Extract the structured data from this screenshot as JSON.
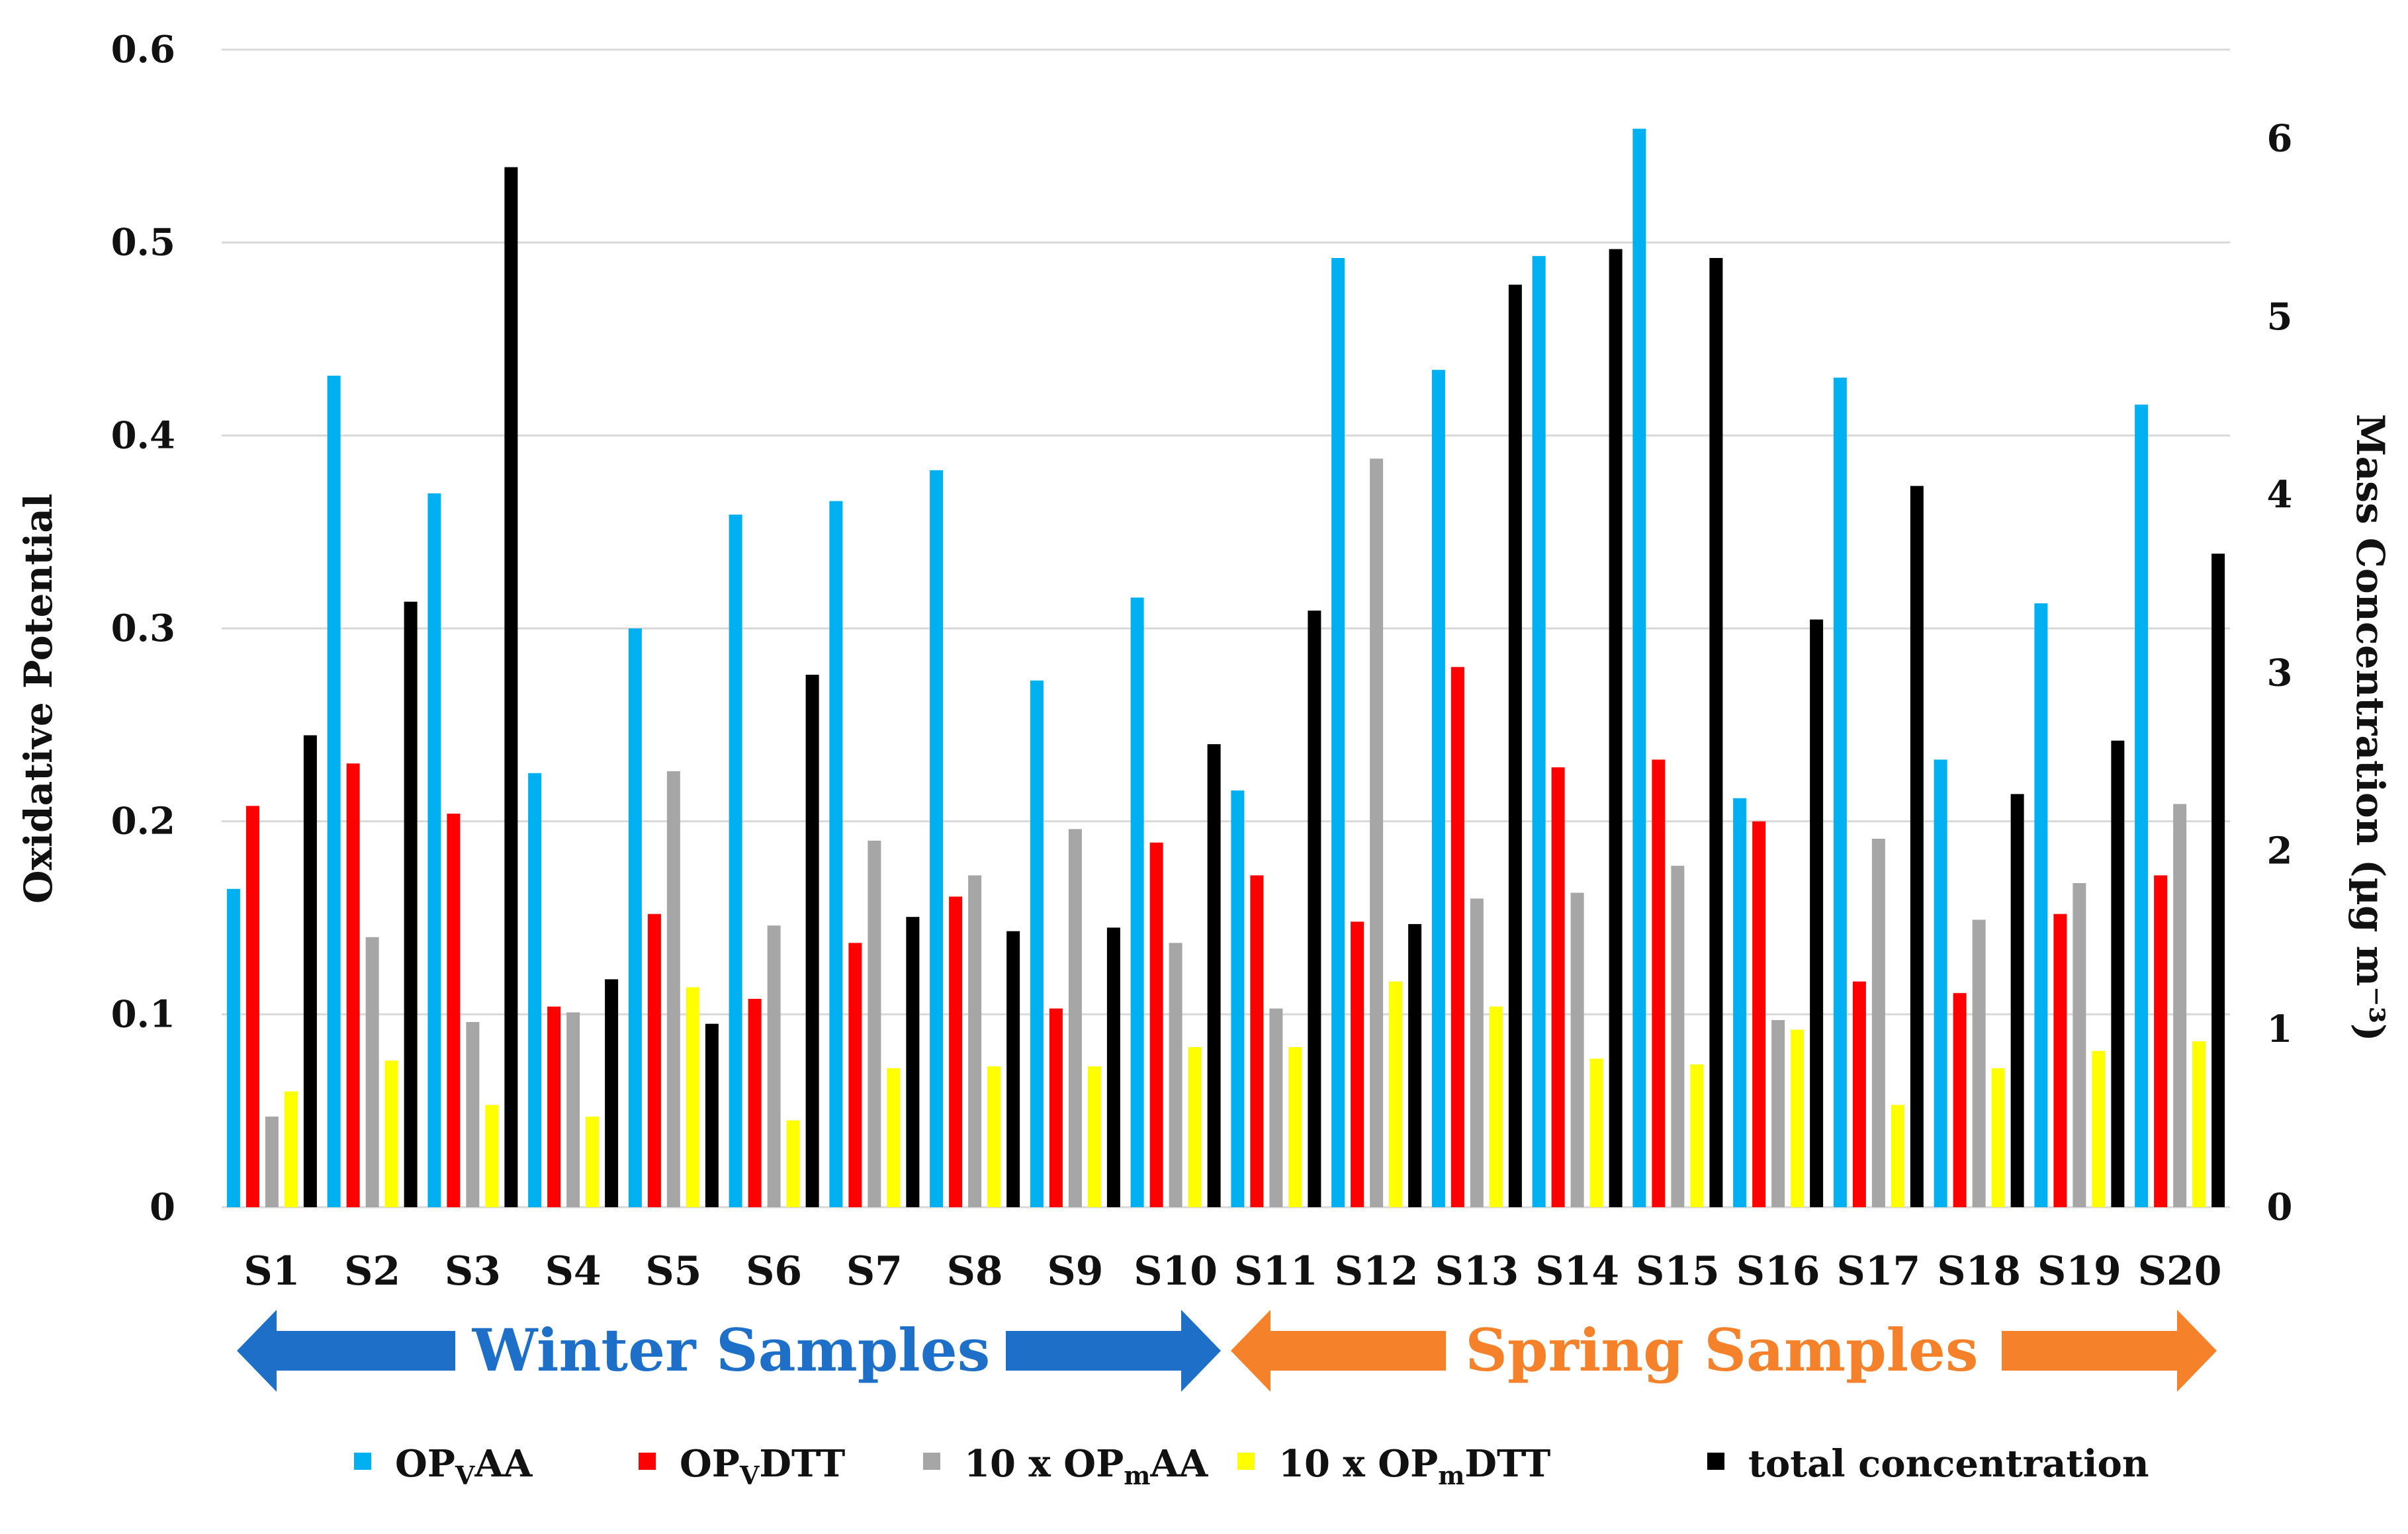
{
  "chart_data": {
    "type": "bar",
    "categories": [
      "S1",
      "S2",
      "S3",
      "S4",
      "S5",
      "S6",
      "S7",
      "S8",
      "S9",
      "S10",
      "S11",
      "S12",
      "S13",
      "S14",
      "S15",
      "S16",
      "S17",
      "S18",
      "S19",
      "S20"
    ],
    "y_left": {
      "label": "Oxidative Potential",
      "lim": [
        0,
        0.6
      ],
      "ticks": [
        "0",
        "0.1",
        "0.2",
        "0.3",
        "0.4",
        "0.5",
        "0.6"
      ]
    },
    "y_right": {
      "label": "Mass Concentration (µg m⁻³)",
      "lim": [
        0,
        6.5
      ],
      "ticks": [
        "0",
        "1",
        "2",
        "3",
        "4",
        "5",
        "6"
      ]
    },
    "series": [
      {
        "name": "OPvAA",
        "base": "OP",
        "sub": "V",
        "tail": "AA",
        "prefix": "",
        "color": "#00b0f0",
        "axis": "left",
        "values": [
          0.165,
          0.431,
          0.37,
          0.225,
          0.3,
          0.359,
          0.366,
          0.382,
          0.273,
          0.316,
          0.216,
          0.492,
          0.434,
          0.493,
          0.559,
          0.212,
          0.43,
          0.232,
          0.313,
          0.416
        ]
      },
      {
        "name": "OPvDTT",
        "base": "OP",
        "sub": "V",
        "tail": "DTT",
        "prefix": "",
        "color": "#ff0000",
        "axis": "left",
        "values": [
          0.208,
          0.23,
          0.204,
          0.104,
          0.152,
          0.108,
          0.137,
          0.161,
          0.103,
          0.189,
          0.172,
          0.148,
          0.28,
          0.228,
          0.232,
          0.2,
          0.117,
          0.111,
          0.152,
          0.172
        ]
      },
      {
        "name": "10 x OPmAA",
        "base": "OP",
        "sub": "m",
        "tail": "AA",
        "prefix": "10 x ",
        "color": "#a6a6a6",
        "axis": "left",
        "values": [
          0.047,
          0.14,
          0.096,
          0.101,
          0.226,
          0.146,
          0.19,
          0.172,
          0.196,
          0.137,
          0.103,
          0.388,
          0.16,
          0.163,
          0.177,
          0.097,
          0.191,
          0.149,
          0.168,
          0.209
        ]
      },
      {
        "name": "10 x OPmDTT",
        "base": "OP",
        "sub": "m",
        "tail": "DTT",
        "prefix": "10 x ",
        "color": "#ffff00",
        "axis": "left",
        "values": [
          0.06,
          0.076,
          0.053,
          0.047,
          0.114,
          0.045,
          0.072,
          0.073,
          0.073,
          0.083,
          0.083,
          0.117,
          0.104,
          0.077,
          0.074,
          0.092,
          0.053,
          0.072,
          0.081,
          0.086
        ]
      },
      {
        "name": "total concentration",
        "base": "total concentration",
        "sub": "",
        "tail": "",
        "prefix": "",
        "color": "#000000",
        "axis": "right",
        "values": [
          2.65,
          3.4,
          5.84,
          1.28,
          1.03,
          2.99,
          1.63,
          1.55,
          1.57,
          2.6,
          3.35,
          1.59,
          5.18,
          5.38,
          5.33,
          3.3,
          4.05,
          2.32,
          2.62,
          3.67
        ]
      }
    ],
    "annotations": [
      {
        "text": "Winter Samples",
        "color": "#1e6fc8",
        "span": [
          1,
          10
        ]
      },
      {
        "text": "Spring Samples",
        "color": "#f5822a",
        "span": [
          11,
          20
        ]
      }
    ],
    "grid": true,
    "legend": "bottom"
  }
}
